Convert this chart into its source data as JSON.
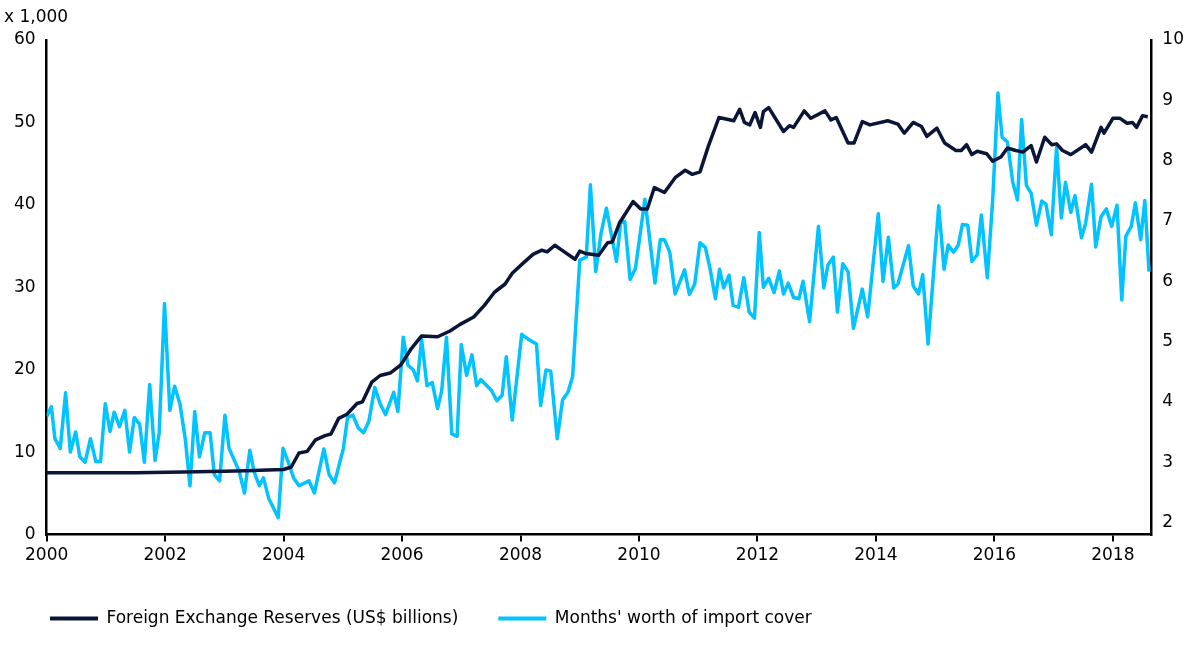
{
  "chart_data": {
    "type": "line",
    "ylabel": "x 1,000",
    "legend": "bottom",
    "marker": "none",
    "line_style": "solid",
    "xlim": [
      2000,
      2018.65
    ],
    "xticks": [
      2000,
      2002,
      2004,
      2006,
      2008,
      2010,
      2012,
      2014,
      2016,
      2018
    ],
    "ylim": [
      0,
      60
    ],
    "yticks": [
      0,
      10,
      20,
      30,
      40,
      50,
      60
    ],
    "y2lim": [
      1.8,
      10
    ],
    "y2ticks": [
      2,
      3,
      4,
      5,
      6,
      7,
      8,
      9,
      10
    ],
    "series": [
      {
        "name": "Foreign Exchange Reserves (US$ billions)",
        "color": "#0b1538",
        "x": [
          2000,
          2000.8,
          2001.5,
          2002.3,
          2003.0,
          2003.6,
          2004.0,
          2004.13,
          2004.26,
          2004.4,
          2004.54,
          2004.7,
          2004.8,
          2004.93,
          2005.07,
          2005.24,
          2005.33,
          2005.49,
          2005.63,
          2005.8,
          2005.98,
          2006.16,
          2006.33,
          2006.6,
          2006.81,
          2006.98,
          2007.21,
          2007.39,
          2007.56,
          2007.74,
          2007.86,
          2008.04,
          2008.21,
          2008.36,
          2008.45,
          2008.58,
          2008.74,
          2008.92,
          2009.0,
          2009.1,
          2009.32,
          2009.47,
          2009.55,
          2009.67,
          2009.9,
          2010.03,
          2010.14,
          2010.26,
          2010.43,
          2010.61,
          2010.78,
          2010.9,
          2011.03,
          2011.17,
          2011.35,
          2011.6,
          2011.7,
          2011.78,
          2011.87,
          2011.96,
          2012.05,
          2012.1,
          2012.19,
          2012.44,
          2012.54,
          2012.61,
          2012.79,
          2012.9,
          2013.14,
          2013.24,
          2013.33,
          2013.53,
          2013.63,
          2013.77,
          2013.9,
          2014.2,
          2014.37,
          2014.48,
          2014.63,
          2014.77,
          2014.86,
          2015.03,
          2015.16,
          2015.35,
          2015.44,
          2015.53,
          2015.62,
          2015.71,
          2015.87,
          2015.97,
          2016.11,
          2016.22,
          2016.36,
          2016.48,
          2016.62,
          2016.71,
          2016.85,
          2016.97,
          2017.05,
          2017.15,
          2017.29,
          2017.54,
          2017.64,
          2017.8,
          2017.85,
          2018.0,
          2018.12,
          2018.24,
          2018.33,
          2018.4,
          2018.5,
          2018.59
        ],
        "values": [
          7.5,
          7.5,
          7.5,
          7.6,
          7.7,
          7.8,
          7.9,
          8.2,
          9.9,
          10.1,
          11.5,
          12.0,
          12.2,
          14.1,
          14.6,
          15.9,
          16.1,
          18.5,
          19.3,
          19.6,
          20.6,
          22.6,
          24.1,
          24.0,
          24.7,
          25.5,
          26.4,
          27.8,
          29.4,
          30.4,
          31.7,
          32.9,
          34.0,
          34.5,
          34.3,
          35.1,
          34.3,
          33.4,
          34.4,
          34.1,
          33.9,
          35.4,
          35.5,
          37.8,
          40.4,
          39.5,
          39.5,
          42.1,
          41.5,
          43.3,
          44.2,
          43.7,
          44.0,
          47.1,
          50.6,
          50.2,
          51.6,
          50.0,
          49.7,
          51.2,
          49.4,
          51.3,
          51.8,
          48.9,
          49.6,
          49.4,
          51.4,
          50.5,
          51.4,
          50.3,
          50.6,
          47.5,
          47.5,
          50.1,
          49.7,
          50.2,
          49.8,
          48.7,
          50.0,
          49.5,
          48.3,
          49.3,
          47.5,
          46.6,
          46.6,
          47.3,
          46.1,
          46.5,
          46.2,
          45.3,
          45.8,
          46.9,
          46.6,
          46.4,
          47.2,
          45.2,
          48.2,
          47.3,
          47.4,
          46.6,
          46.1,
          47.3,
          46.4,
          49.4,
          48.7,
          50.5,
          50.5,
          49.9,
          50.0,
          49.4,
          50.8,
          50.7
        ]
      },
      {
        "name": "Months' worth of import cover",
        "color": "#00c3ff",
        "axis": "y2",
        "x": [
          2000,
          2000.08,
          2000.14,
          2000.23,
          2000.32,
          2000.4,
          2000.49,
          2000.56,
          2000.65,
          2000.74,
          2000.83,
          2000.91,
          2000.99,
          2001.07,
          2001.14,
          2001.23,
          2001.32,
          2001.4,
          2001.48,
          2001.57,
          2001.65,
          2001.74,
          2001.83,
          2001.9,
          2001.99,
          2002.08,
          2002.16,
          2002.25,
          2002.34,
          2002.42,
          2002.5,
          2002.58,
          2002.67,
          2002.76,
          2002.83,
          2002.92,
          2003.01,
          2003.08,
          2003.25,
          2003.34,
          2003.43,
          2003.5,
          2003.59,
          2003.66,
          2003.75,
          2003.91,
          2003.99,
          2004.08,
          2004.17,
          2004.26,
          2004.43,
          2004.52,
          2004.68,
          2004.77,
          2004.86,
          2005.01,
          2005.08,
          2005.17,
          2005.26,
          2005.35,
          2005.44,
          2005.54,
          2005.63,
          2005.72,
          2005.86,
          2005.93,
          2006.02,
          2006.1,
          2006.19,
          2006.26,
          2006.33,
          2006.42,
          2006.51,
          2006.6,
          2006.67,
          2006.75,
          2006.84,
          2006.93,
          2007.0,
          2007.09,
          2007.18,
          2007.26,
          2007.33,
          2007.51,
          2007.6,
          2007.69,
          2007.76,
          2007.86,
          2008.02,
          2008.13,
          2008.27,
          2008.34,
          2008.43,
          2008.51,
          2008.62,
          2008.71,
          2008.8,
          2008.88,
          2009.0,
          2009.11,
          2009.18,
          2009.27,
          2009.36,
          2009.45,
          2009.62,
          2009.69,
          2009.76,
          2009.85,
          2009.94,
          2010.1,
          2010.27,
          2010.36,
          2010.43,
          2010.52,
          2010.61,
          2010.77,
          2010.85,
          2010.94,
          2011.03,
          2011.12,
          2011.2,
          2011.29,
          2011.36,
          2011.43,
          2011.52,
          2011.59,
          2011.68,
          2011.77,
          2011.86,
          2011.95,
          2012.03,
          2012.1,
          2012.19,
          2012.28,
          2012.37,
          2012.44,
          2012.52,
          2012.61,
          2012.7,
          2012.77,
          2012.88,
          2013.03,
          2013.12,
          2013.19,
          2013.28,
          2013.35,
          2013.44,
          2013.53,
          2013.62,
          2013.77,
          2013.86,
          2014.04,
          2014.12,
          2014.21,
          2014.3,
          2014.37,
          2014.55,
          2014.63,
          2014.72,
          2014.79,
          2014.88,
          2015.06,
          2015.15,
          2015.22,
          2015.31,
          2015.39,
          2015.46,
          2015.55,
          2015.62,
          2015.71,
          2015.78,
          2015.88,
          2015.97,
          2016.06,
          2016.13,
          2016.22,
          2016.31,
          2016.39,
          2016.46,
          2016.54,
          2016.62,
          2016.71,
          2016.8,
          2016.87,
          2016.96,
          2017.05,
          2017.13,
          2017.2,
          2017.29,
          2017.36,
          2017.47,
          2017.54,
          2017.64,
          2017.71,
          2017.8,
          2017.89,
          2017.98,
          2018.07,
          2018.15,
          2018.22,
          2018.31,
          2018.38,
          2018.47,
          2018.54,
          2018.61
        ],
        "values": [
          3.76,
          3.92,
          3.39,
          3.23,
          4.15,
          3.17,
          3.5,
          3.09,
          3.0,
          3.39,
          3.01,
          3.01,
          3.97,
          3.51,
          3.83,
          3.59,
          3.86,
          3.17,
          3.74,
          3.63,
          3.0,
          4.29,
          3.03,
          3.49,
          5.63,
          3.86,
          4.26,
          3.97,
          3.39,
          2.61,
          3.84,
          3.09,
          3.49,
          3.49,
          2.8,
          2.69,
          3.78,
          3.23,
          2.85,
          2.49,
          3.2,
          2.85,
          2.61,
          2.74,
          2.4,
          2.08,
          3.23,
          3.0,
          2.74,
          2.61,
          2.69,
          2.49,
          3.22,
          2.79,
          2.66,
          3.23,
          3.74,
          3.78,
          3.57,
          3.49,
          3.68,
          4.24,
          3.97,
          3.79,
          4.16,
          3.84,
          5.07,
          4.61,
          4.53,
          4.35,
          5.04,
          4.27,
          4.32,
          3.89,
          4.19,
          5.07,
          3.47,
          3.43,
          4.95,
          4.44,
          4.78,
          4.27,
          4.37,
          4.19,
          4.02,
          4.11,
          4.75,
          3.7,
          5.12,
          5.04,
          4.96,
          3.94,
          4.53,
          4.51,
          3.39,
          4.03,
          4.16,
          4.42,
          6.35,
          6.4,
          7.6,
          6.16,
          6.8,
          7.21,
          6.33,
          6.97,
          6.99,
          6.03,
          6.21,
          7.36,
          5.97,
          6.69,
          6.69,
          6.48,
          5.79,
          6.19,
          5.78,
          5.95,
          6.64,
          6.56,
          6.21,
          5.71,
          6.2,
          5.89,
          6.1,
          5.6,
          5.57,
          6.06,
          5.49,
          5.39,
          6.81,
          5.9,
          6.05,
          5.81,
          6.17,
          5.79,
          5.97,
          5.73,
          5.71,
          6.0,
          5.33,
          6.91,
          5.89,
          6.27,
          6.4,
          5.49,
          6.29,
          6.16,
          5.22,
          5.87,
          5.41,
          7.12,
          6.0,
          6.73,
          5.89,
          5.95,
          6.59,
          5.92,
          5.79,
          6.11,
          4.96,
          7.25,
          6.2,
          6.6,
          6.48,
          6.6,
          6.94,
          6.93,
          6.33,
          6.44,
          7.1,
          6.06,
          7.33,
          9.12,
          8.39,
          8.31,
          7.64,
          7.35,
          8.68,
          7.59,
          7.46,
          6.93,
          7.33,
          7.28,
          6.77,
          8.22,
          7.05,
          7.64,
          7.14,
          7.42,
          6.72,
          6.96,
          7.61,
          6.57,
          7.07,
          7.2,
          6.91,
          7.26,
          5.69,
          6.75,
          6.91,
          7.3,
          6.69,
          7.34,
          6.16
        ]
      }
    ]
  }
}
